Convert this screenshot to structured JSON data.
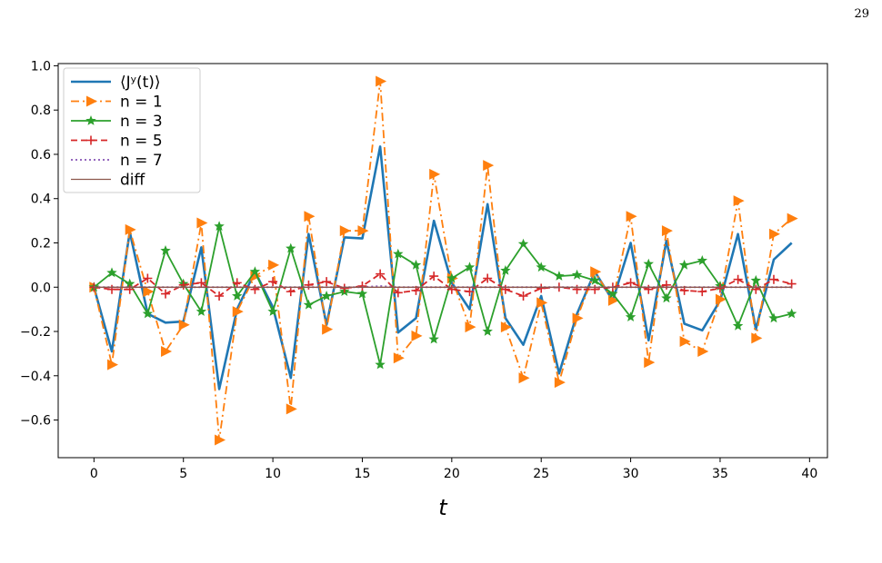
{
  "page": {
    "number": "29"
  },
  "chart_data": {
    "type": "line",
    "xlabel": "t",
    "ylabel": "",
    "xlim": [
      -2,
      41
    ],
    "ylim": [
      -0.77,
      1.01
    ],
    "xticks": [
      0,
      5,
      10,
      15,
      20,
      25,
      30,
      35,
      40
    ],
    "yticks": [
      -0.6,
      -0.4,
      -0.2,
      0.0,
      0.2,
      0.4,
      0.6,
      0.8,
      1.0
    ],
    "xtick_labels": [
      "0",
      "5",
      "10",
      "15",
      "20",
      "25",
      "30",
      "35",
      "40"
    ],
    "ytick_labels": [
      "−0.6",
      "−0.4",
      "−0.2",
      "0.0",
      "0.2",
      "0.4",
      "0.6",
      "0.8",
      "1.0"
    ],
    "legend_position": "top-left",
    "grid": false,
    "x": [
      0,
      1,
      2,
      3,
      4,
      5,
      6,
      7,
      8,
      9,
      10,
      11,
      12,
      13,
      14,
      15,
      16,
      17,
      18,
      19,
      20,
      21,
      22,
      23,
      24,
      25,
      26,
      27,
      28,
      29,
      30,
      31,
      32,
      33,
      34,
      35,
      36,
      37,
      38,
      39
    ],
    "series": [
      {
        "name": "⟨Jʸ(t)⟩",
        "color": "#1f77b4",
        "style": "solid",
        "marker": "none",
        "width": 2.6,
        "values": [
          0.0,
          -0.29,
          0.25,
          -0.12,
          -0.16,
          -0.155,
          0.18,
          -0.46,
          -0.1,
          0.07,
          -0.09,
          -0.41,
          0.24,
          -0.17,
          0.225,
          0.22,
          0.635,
          -0.205,
          -0.14,
          0.3,
          0.02,
          -0.1,
          0.375,
          -0.14,
          -0.26,
          -0.04,
          -0.39,
          -0.12,
          0.07,
          -0.06,
          0.2,
          -0.24,
          0.21,
          -0.165,
          -0.195,
          -0.06,
          0.24,
          -0.19,
          0.125,
          0.2
        ]
      },
      {
        "name": "n = 1",
        "color": "#ff7f0e",
        "style": "dashdot",
        "marker": "triangle",
        "width": 1.8,
        "values": [
          0.0,
          -0.35,
          0.26,
          -0.02,
          -0.29,
          -0.17,
          0.29,
          -0.69,
          -0.11,
          0.05,
          0.1,
          -0.55,
          0.32,
          -0.19,
          0.255,
          0.255,
          0.93,
          -0.32,
          -0.22,
          0.51,
          0.04,
          -0.18,
          0.55,
          -0.18,
          -0.41,
          -0.07,
          -0.43,
          -0.14,
          0.07,
          -0.06,
          0.32,
          -0.34,
          0.255,
          -0.245,
          -0.29,
          -0.055,
          0.39,
          -0.23,
          0.24,
          0.31
        ]
      },
      {
        "name": "n = 3",
        "color": "#2ca02c",
        "style": "solid",
        "marker": "star",
        "width": 1.8,
        "values": [
          0.0,
          0.065,
          0.015,
          -0.12,
          0.165,
          0.015,
          -0.11,
          0.275,
          -0.04,
          0.07,
          -0.11,
          0.175,
          -0.08,
          -0.04,
          -0.02,
          -0.03,
          -0.35,
          0.15,
          0.1,
          -0.235,
          0.04,
          0.09,
          -0.2,
          0.075,
          0.195,
          0.09,
          0.05,
          0.055,
          0.03,
          -0.03,
          -0.135,
          0.105,
          -0.05,
          0.1,
          0.12,
          0.005,
          -0.175,
          0.03,
          -0.14,
          -0.12
        ]
      },
      {
        "name": "n = 5",
        "color": "#d62728",
        "style": "dashed",
        "marker": "plus",
        "width": 1.8,
        "values": [
          0.0,
          -0.01,
          -0.01,
          0.04,
          -0.03,
          0.01,
          0.02,
          -0.04,
          0.02,
          -0.01,
          0.025,
          -0.02,
          0.01,
          0.025,
          -0.005,
          0.005,
          0.06,
          -0.025,
          -0.015,
          0.05,
          -0.01,
          -0.02,
          0.04,
          -0.01,
          -0.04,
          -0.005,
          0.0,
          -0.01,
          -0.01,
          0.0,
          0.02,
          -0.01,
          0.01,
          -0.015,
          -0.02,
          -0.005,
          0.035,
          -0.01,
          0.035,
          0.015
        ]
      },
      {
        "name": "n = 7",
        "color": "#9467bd",
        "style": "dotted",
        "marker": "none",
        "width": 2.0,
        "values": [
          0.0,
          0.0,
          0.0,
          0.0,
          0.0,
          0.0,
          0.0,
          0.0,
          0.0,
          0.0,
          0.0,
          0.0,
          0.0,
          0.0,
          0.0,
          0.0,
          0.005,
          0.0,
          0.0,
          0.0,
          0.0,
          0.0,
          0.0,
          0.0,
          0.0,
          0.0,
          0.0,
          0.0,
          0.0,
          0.0,
          0.0,
          0.0,
          0.0,
          0.0,
          0.0,
          0.0,
          0.0,
          0.0,
          0.0,
          0.0
        ]
      },
      {
        "name": "diff",
        "color": "#8c564b",
        "style": "solid",
        "marker": "none",
        "width": 1.3,
        "values": [
          0.0,
          0.0,
          0.0,
          0.0,
          0.0,
          0.0,
          0.0,
          0.0,
          0.0,
          0.0,
          0.0,
          0.0,
          0.0,
          0.0,
          0.0,
          0.0,
          0.0,
          0.0,
          0.0,
          0.0,
          0.0,
          0.0,
          0.0,
          0.0,
          0.0,
          0.0,
          0.0,
          0.0,
          0.0,
          0.0,
          0.0,
          0.0,
          0.0,
          0.0,
          0.0,
          0.0,
          0.0,
          0.0,
          0.0,
          0.0
        ]
      }
    ]
  }
}
